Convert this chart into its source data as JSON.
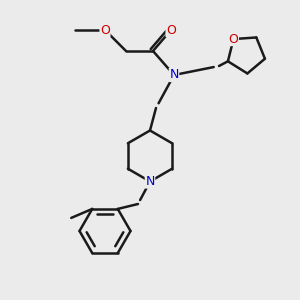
{
  "bg_color": "#ebebeb",
  "bond_color": "#1a1a1a",
  "N_color": "#0000cc",
  "O_color": "#cc0000",
  "lw": 1.8,
  "fontsize": 9,
  "xlim": [
    0,
    10
  ],
  "ylim": [
    0,
    10
  ]
}
